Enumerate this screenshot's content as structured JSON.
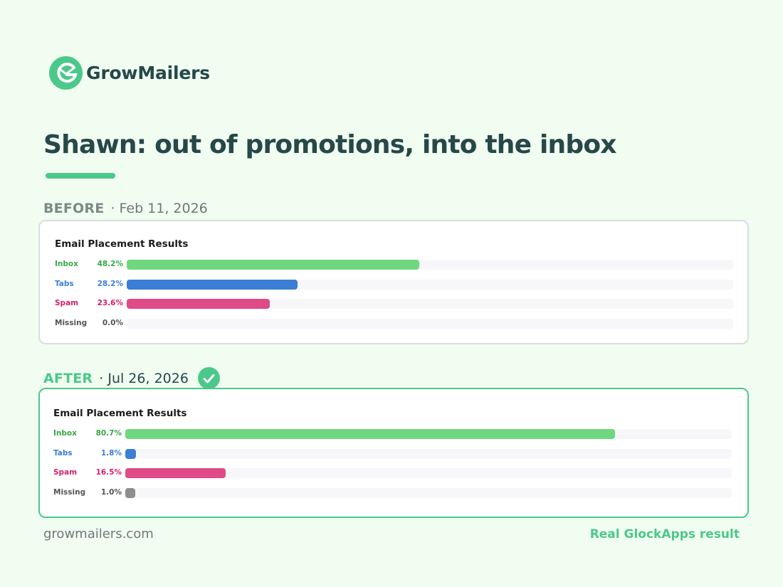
{
  "brand": {
    "name": "GrowMailers",
    "accent": "#4cc88a"
  },
  "headline": "Shawn: out of promotions, into the inbox",
  "before": {
    "tag": "BEFORE",
    "date": "· Feb 11, 2026"
  },
  "after": {
    "tag": "AFTER",
    "date": "· Jul 26, 2026",
    "icon": "check-circle-icon"
  },
  "chart_data": [
    {
      "type": "bar",
      "orientation": "horizontal",
      "title": "Email Placement Results",
      "xlim": [
        0,
        100
      ],
      "categories": [
        "Inbox",
        "Tabs",
        "Spam",
        "Missing"
      ],
      "values": [
        48.2,
        28.2,
        23.6,
        0.0
      ],
      "labels": [
        "48.2%",
        "28.2%",
        "23.6%",
        "0.0%"
      ],
      "colors": [
        "#6fd77f",
        "#3a7fd5",
        "#df4a87",
        "#8d8d8d"
      ],
      "label_colors": [
        "#36a847",
        "#3a7fd5",
        "#d61f6c",
        "#555555"
      ]
    },
    {
      "type": "bar",
      "orientation": "horizontal",
      "title": "Email Placement Results",
      "xlim": [
        0,
        100
      ],
      "categories": [
        "Inbox",
        "Tabs",
        "Spam",
        "Missing"
      ],
      "values": [
        80.7,
        1.8,
        16.5,
        1.0
      ],
      "labels": [
        "80.7%",
        "1.8%",
        "16.5%",
        "1.0%"
      ],
      "colors": [
        "#6fd77f",
        "#3a7fd5",
        "#df4a87",
        "#8d8d8d"
      ],
      "label_colors": [
        "#36a847",
        "#3a7fd5",
        "#d61f6c",
        "#555555"
      ]
    }
  ],
  "footer": {
    "site": "growmailers.com",
    "note": "Real GlockApps result"
  }
}
